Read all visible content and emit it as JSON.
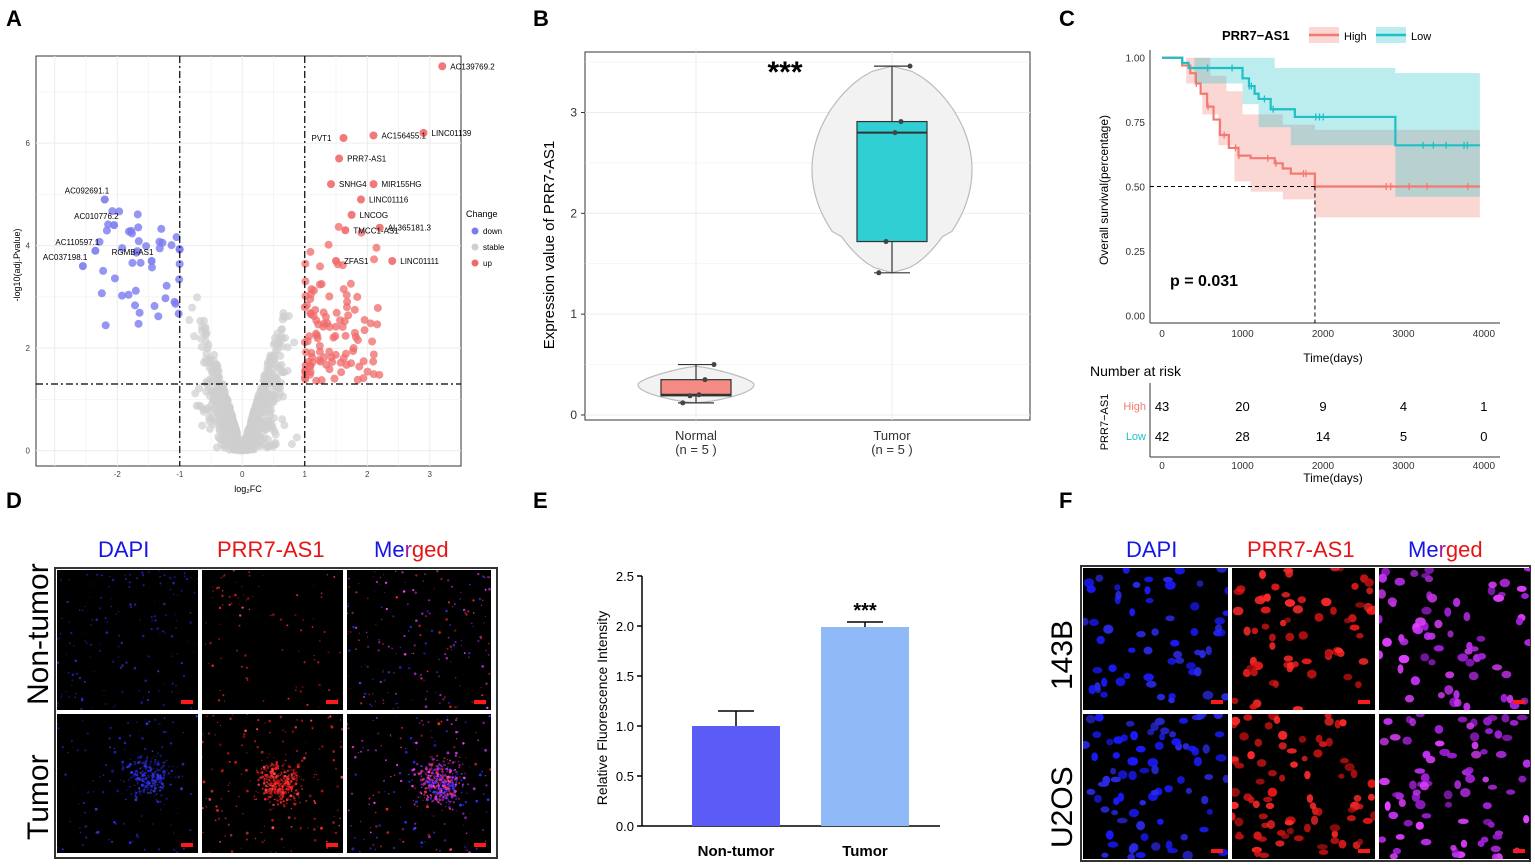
{
  "panel_labels": {
    "a": "A",
    "b": "B",
    "c": "C",
    "d": "D",
    "e": "E",
    "f": "F"
  },
  "colors": {
    "down": "#7b7bf0",
    "stable": "#cfcfcf",
    "up": "#f06a6a",
    "high": "#f27a72",
    "low": "#1fbfc6",
    "bar_nontumor": "#5b5bf5",
    "bar_tumor": "#8fbaf7"
  },
  "chart_data": [
    {
      "id": "A",
      "type": "scatter",
      "title": "",
      "xlabel": "log₂FC",
      "ylabel": "-log10(adj.Pvalue)",
      "xlim": [
        -3.3,
        3.5
      ],
      "ylim": [
        -0.3,
        7.7
      ],
      "xticks": [
        "-2",
        "-1",
        "0",
        "1",
        "2",
        "3"
      ],
      "yticks": [
        "0",
        "2",
        "4",
        "6"
      ],
      "thresholds": {
        "x": [
          -1,
          1
        ],
        "y": 1.3
      },
      "legend": {
        "title": "Change",
        "items": [
          "down",
          "stable",
          "up"
        ]
      },
      "labeled_points": [
        {
          "label": "AC139769.2",
          "x": 3.2,
          "y": 7.5,
          "group": "up"
        },
        {
          "label": "LINC01139",
          "x": 2.9,
          "y": 6.2,
          "group": "up"
        },
        {
          "label": "AC156455.1",
          "x": 2.1,
          "y": 6.15,
          "group": "up"
        },
        {
          "label": "PVT1",
          "x": 1.62,
          "y": 6.1,
          "group": "up"
        },
        {
          "label": "PRR7-AS1",
          "x": 1.55,
          "y": 5.7,
          "group": "up"
        },
        {
          "label": "SNHG4",
          "x": 1.42,
          "y": 5.2,
          "group": "up"
        },
        {
          "label": "MIR155HG",
          "x": 2.1,
          "y": 5.2,
          "group": "up"
        },
        {
          "label": "LINC01116",
          "x": 1.9,
          "y": 4.9,
          "group": "up"
        },
        {
          "label": "LNCOG",
          "x": 1.75,
          "y": 4.6,
          "group": "up"
        },
        {
          "label": "AL365181.3",
          "x": 2.2,
          "y": 4.35,
          "group": "up"
        },
        {
          "label": "TMCC1-AS1",
          "x": 1.65,
          "y": 4.3,
          "group": "up"
        },
        {
          "label": "ZFAS1",
          "x": 1.5,
          "y": 3.7,
          "group": "up"
        },
        {
          "label": "LINC01111",
          "x": 2.4,
          "y": 3.7,
          "group": "up"
        },
        {
          "label": "AC092691.1",
          "x": -2.2,
          "y": 4.9,
          "group": "down"
        },
        {
          "label": "AC010776.2",
          "x": -2.05,
          "y": 4.4,
          "group": "down"
        },
        {
          "label": "AC110597.1",
          "x": -2.35,
          "y": 3.9,
          "group": "down"
        },
        {
          "label": "RGMB-AS1",
          "x": -1.45,
          "y": 3.7,
          "group": "down"
        },
        {
          "label": "AC037198.1",
          "x": -2.55,
          "y": 3.6,
          "group": "down"
        }
      ]
    },
    {
      "id": "B",
      "type": "box-violin",
      "ylabel": "Expression value of  PRR7-AS1",
      "categories": [
        "Normal",
        "Tumor"
      ],
      "n_labels": [
        "(n = 5 )",
        "(n = 5 )"
      ],
      "ylim": [
        -0.05,
        3.6
      ],
      "yticks": [
        "0",
        "1",
        "2",
        "3"
      ],
      "significance": "***",
      "boxes": [
        {
          "name": "Normal",
          "min": 0.12,
          "q1": 0.19,
          "median": 0.2,
          "q3": 0.35,
          "max": 0.5,
          "points": [
            0.12,
            0.19,
            0.2,
            0.35,
            0.5
          ]
        },
        {
          "name": "Tumor",
          "min": 1.41,
          "q1": 1.72,
          "median": 2.8,
          "q3": 2.91,
          "max": 3.46,
          "points": [
            1.41,
            1.72,
            2.8,
            2.91,
            3.46
          ]
        }
      ]
    },
    {
      "id": "C",
      "type": "survival",
      "legend_title": "PRR7−AS1",
      "groups": [
        "High",
        "Low"
      ],
      "ylabel": "Overall survival(percentage)",
      "xlabel": "Time(days)",
      "xlim": [
        -150,
        4200
      ],
      "ylim": [
        -0.03,
        1.03
      ],
      "xticks": [
        "0",
        "1000",
        "2000",
        "3000",
        "4000"
      ],
      "yticks": [
        "0.00",
        "0.25",
        "0.50",
        "0.75",
        "1.00"
      ],
      "pvalue": "p = 0.031",
      "median_survival_high": 1900,
      "series": [
        {
          "name": "High",
          "steps": [
            [
              0,
              1
            ],
            [
              250,
              1
            ],
            [
              250,
              0.97
            ],
            [
              350,
              0.94
            ],
            [
              420,
              0.9
            ],
            [
              480,
              0.86
            ],
            [
              560,
              0.81
            ],
            [
              640,
              0.76
            ],
            [
              720,
              0.7
            ],
            [
              830,
              0.65
            ],
            [
              950,
              0.62
            ],
            [
              1100,
              0.61
            ],
            [
              1400,
              0.59
            ],
            [
              1500,
              0.57
            ],
            [
              1600,
              0.55
            ],
            [
              1900,
              0.5
            ],
            [
              3950,
              0.5
            ]
          ],
          "ci_upper": [
            [
              0,
              1
            ],
            [
              400,
              1
            ],
            [
              600,
              0.93
            ],
            [
              800,
              0.87
            ],
            [
              1000,
              0.78
            ],
            [
              1500,
              0.74
            ],
            [
              1900,
              0.72
            ],
            [
              3950,
              0.72
            ]
          ],
          "ci_lower": [
            [
              0,
              1
            ],
            [
              300,
              0.9
            ],
            [
              500,
              0.78
            ],
            [
              700,
              0.66
            ],
            [
              900,
              0.52
            ],
            [
              1100,
              0.48
            ],
            [
              1500,
              0.45
            ],
            [
              1900,
              0.38
            ],
            [
              3950,
              0.35
            ]
          ]
        },
        {
          "name": "Low",
          "steps": [
            [
              0,
              1
            ],
            [
              250,
              1
            ],
            [
              250,
              0.98
            ],
            [
              330,
              0.96
            ],
            [
              900,
              0.96
            ],
            [
              1000,
              0.92
            ],
            [
              1080,
              0.89
            ],
            [
              1150,
              0.86
            ],
            [
              1200,
              0.84
            ],
            [
              1350,
              0.8
            ],
            [
              1650,
              0.77
            ],
            [
              2900,
              0.76
            ],
            [
              2900,
              0.66
            ],
            [
              3950,
              0.66
            ]
          ],
          "ci_upper": [
            [
              0,
              1
            ],
            [
              1000,
              1
            ],
            [
              1400,
              0.96
            ],
            [
              2900,
              0.94
            ],
            [
              3950,
              0.94
            ]
          ],
          "ci_lower": [
            [
              0,
              1
            ],
            [
              400,
              0.9
            ],
            [
              1000,
              0.82
            ],
            [
              1200,
              0.73
            ],
            [
              1600,
              0.66
            ],
            [
              2900,
              0.6
            ],
            [
              2900,
              0.46
            ],
            [
              3950,
              0.46
            ]
          ]
        }
      ],
      "risk_table": {
        "title": "Number at risk",
        "ylabel": "PRR7−AS1",
        "times": [
          "0",
          "1000",
          "2000",
          "3000",
          "4000"
        ],
        "rows": [
          {
            "group": "High",
            "counts": [
              "43",
              "20",
              "9",
              "4",
              "1"
            ]
          },
          {
            "group": "Low",
            "counts": [
              "42",
              "28",
              "14",
              "5",
              "0"
            ]
          }
        ]
      }
    },
    {
      "id": "E",
      "type": "bar",
      "ylabel": "Relative Fluorescence Intensity",
      "categories": [
        "Non-tumor",
        "Tumor"
      ],
      "values": [
        1.0,
        1.99
      ],
      "errors": [
        0.15,
        0.05
      ],
      "ylim": [
        0,
        2.5
      ],
      "yticks": [
        "0.0",
        "0.5",
        "1.0",
        "1.5",
        "2.0",
        "2.5"
      ],
      "significance": "***"
    }
  ],
  "panel_d": {
    "columns": [
      "DAPI",
      "PRR7-AS1",
      "Merged"
    ],
    "rows": [
      "Non-tumor",
      "Tumor"
    ]
  },
  "panel_f": {
    "columns": [
      "DAPI",
      "PRR7-AS1",
      "Merged"
    ],
    "rows": [
      "143B",
      "U2OS"
    ]
  }
}
